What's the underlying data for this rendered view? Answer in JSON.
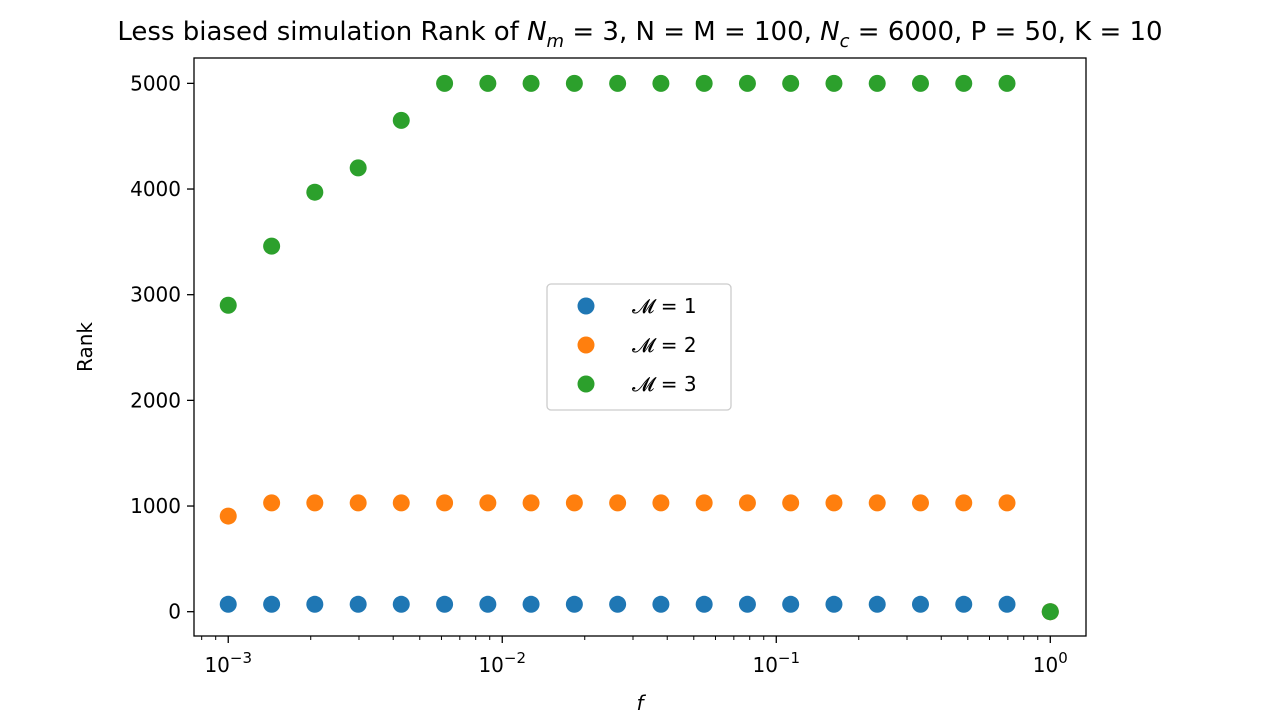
{
  "chart_data": {
    "type": "scatter",
    "title": "Less biased simulation Rank of N_m = 3, N = M = 100, N_c = 6000, P = 50, K = 10",
    "title_parts": {
      "prefix": "Less biased simulation Rank of ",
      "nm_label": "N",
      "nm_sub": "m",
      "nm_value": " = 3, ",
      "nmm_label": "N = M = 100, ",
      "nc_label": "N",
      "nc_sub": "c",
      "nc_value": " = 6000, ",
      "p_label": "P = 50, ",
      "k_label": "K = 10"
    },
    "xlabel": "f",
    "ylabel": "Rank",
    "x_scale": "log",
    "xlim": [
      0.00075,
      1.35
    ],
    "ylim": [
      -230,
      5240
    ],
    "xticks_major": [
      {
        "value": 0.001,
        "base": "10",
        "exp": "−3"
      },
      {
        "value": 0.01,
        "base": "10",
        "exp": "−2"
      },
      {
        "value": 0.1,
        "base": "10",
        "exp": "−1"
      },
      {
        "value": 1,
        "base": "10",
        "exp": "0"
      }
    ],
    "yticks": [
      "0",
      "1000",
      "2000",
      "3000",
      "4000",
      "5000"
    ],
    "grid": false,
    "legend_placement": "center",
    "series": [
      {
        "name": "𝓜 = 1",
        "color": "#1f77b4",
        "x": [
          0.001,
          0.00144,
          0.00207,
          0.00298,
          0.00428,
          0.00616,
          0.00886,
          0.01274,
          0.01833,
          0.02637,
          0.03793,
          0.05456,
          0.07848,
          0.11288,
          0.16238,
          0.23357,
          0.33598,
          0.48329,
          0.69519,
          1.0
        ],
        "y": [
          70,
          70,
          70,
          70,
          70,
          70,
          70,
          70,
          70,
          70,
          70,
          70,
          70,
          70,
          70,
          70,
          70,
          70,
          70,
          0
        ]
      },
      {
        "name": "𝓜 = 2",
        "color": "#ff7f0e",
        "x": [
          0.001,
          0.00144,
          0.00207,
          0.00298,
          0.00428,
          0.00616,
          0.00886,
          0.01274,
          0.01833,
          0.02637,
          0.03793,
          0.05456,
          0.07848,
          0.11288,
          0.16238,
          0.23357,
          0.33598,
          0.48329,
          0.69519,
          1.0
        ],
        "y": [
          905,
          1030,
          1030,
          1030,
          1030,
          1030,
          1030,
          1030,
          1030,
          1030,
          1030,
          1030,
          1030,
          1030,
          1030,
          1030,
          1030,
          1030,
          1030,
          0
        ]
      },
      {
        "name": "𝓜 = 3",
        "color": "#2ca02c",
        "x": [
          0.001,
          0.00144,
          0.00207,
          0.00298,
          0.00428,
          0.00616,
          0.00886,
          0.01274,
          0.01833,
          0.02637,
          0.03793,
          0.05456,
          0.07848,
          0.11288,
          0.16238,
          0.23357,
          0.33598,
          0.48329,
          0.69519,
          1.0
        ],
        "y": [
          2900,
          3460,
          3970,
          4200,
          4650,
          5000,
          5000,
          5000,
          5000,
          5000,
          5000,
          5000,
          5000,
          5000,
          5000,
          5000,
          5000,
          5000,
          5000,
          0
        ]
      }
    ]
  }
}
